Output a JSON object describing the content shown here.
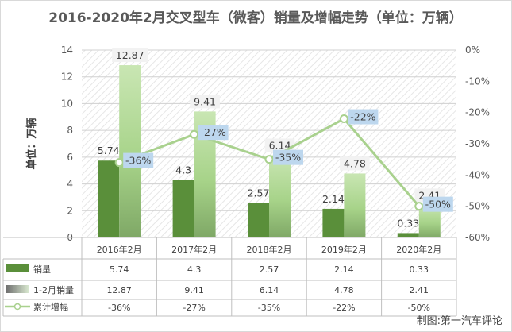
{
  "chart_data": {
    "type": "bar",
    "title": "2016-2020年2月交叉型车（微客）销量及增幅走势（单位：万辆）",
    "ylabel": "单位：万辆",
    "categories": [
      "2016年2月",
      "2017年2月",
      "2018年2月",
      "2019年2月",
      "2020年2月"
    ],
    "ylim": [
      0,
      14
    ],
    "y_ticks": [
      "0",
      "2",
      "4",
      "6",
      "8",
      "10",
      "12",
      "14"
    ],
    "y2lim": [
      -60,
      0
    ],
    "y2_ticks": [
      "0%",
      "-10%",
      "-20%",
      "-30%",
      "-40%",
      "-50%",
      "-60%"
    ],
    "series": [
      {
        "name": "销量",
        "type": "bar",
        "values": [
          5.74,
          4.3,
          2.57,
          2.14,
          0.33
        ],
        "labels": [
          "5.74",
          "4.3",
          "2.57",
          "2.14",
          "0.33"
        ],
        "color": "#5a8f3a"
      },
      {
        "name": "1-2月销量",
        "type": "bar",
        "values": [
          12.87,
          9.41,
          6.14,
          4.78,
          2.41
        ],
        "labels": [
          "12.87",
          "9.41",
          "6.14",
          "4.78",
          "2.41"
        ],
        "color": "#9ccc7c"
      },
      {
        "name": "累计增幅",
        "type": "line",
        "axis": "right",
        "values": [
          -36,
          -27,
          -35,
          -22,
          -50
        ],
        "labels": [
          "-36%",
          "-27%",
          "-35%",
          "-22%",
          "-50%"
        ],
        "color": "#a9d18e"
      }
    ],
    "grid": true,
    "legend": "table-bottom"
  },
  "credit": "制图:第一汽车评论"
}
